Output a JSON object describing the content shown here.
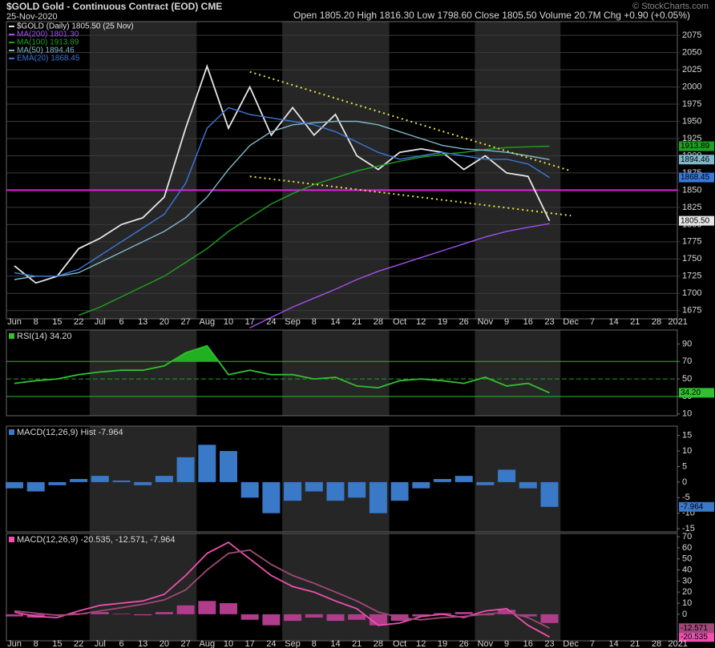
{
  "header": {
    "title": "$GOLD Gold - Continuous Contract (EOD) CME",
    "date": "25-Nov-2020",
    "quote": "Open 1805.20 High 1816.30 Low 1798.60 Close 1805.50 Volume 20.7M Chg +0.90 (+0.05%)",
    "credit": "© StockCharts.com"
  },
  "chart_data": [
    {
      "type": "line",
      "categories": [
        "Jun",
        "8",
        "15",
        "22",
        "Jul",
        "6",
        "13",
        "20",
        "27",
        "Aug",
        "10",
        "17",
        "24",
        "Sep",
        "8",
        "14",
        "21",
        "28",
        "Oct",
        "12",
        "19",
        "26",
        "Nov",
        "9",
        "16",
        "23",
        "Dec",
        "7",
        "14",
        "21",
        "28",
        "2021"
      ],
      "ylim": [
        1663,
        2095
      ],
      "yticks": [
        1675,
        1700,
        1725,
        1750,
        1775,
        1800,
        1825,
        1850,
        1875,
        1900,
        1925,
        1950,
        1975,
        2000,
        2025,
        2050,
        2075
      ],
      "grid": true,
      "hlines": [
        {
          "value": 1850,
          "color": "#e020e0"
        }
      ],
      "trendlines": [
        {
          "from": "17",
          "to": "Dec",
          "values": [
            2022,
            1878
          ]
        },
        {
          "from": "17",
          "to": "Dec",
          "values": [
            1870,
            1813
          ]
        }
      ],
      "trendline_color": "#e8e040",
      "series": [
        {
          "name": "$GOLD (Daily) 1805.50 (25 Nov)",
          "color": "#e6e6e6",
          "last_label": "1805.50",
          "values": [
            1740,
            1715,
            1725,
            1765,
            1780,
            1800,
            1810,
            1840,
            1940,
            2030,
            1940,
            2000,
            1930,
            1970,
            1930,
            1960,
            1900,
            1880,
            1905,
            1910,
            1905,
            1880,
            1900,
            1875,
            1870,
            1805.5,
            null,
            null,
            null,
            null,
            null,
            null
          ]
        },
        {
          "name": "MA(200) 1801.30",
          "color": "#a050f0",
          "values": [
            null,
            null,
            null,
            null,
            null,
            null,
            null,
            null,
            null,
            null,
            null,
            1650,
            1665,
            1680,
            1693,
            1706,
            1720,
            1732,
            1742,
            1752,
            1762,
            1772,
            1782,
            1790,
            1796,
            1801.3,
            null,
            null,
            null,
            null,
            null,
            null
          ]
        },
        {
          "name": "MA(100) 1913.89",
          "color": "#20a020",
          "show_last": true,
          "values": [
            null,
            null,
            null,
            1668,
            1680,
            1695,
            1710,
            1725,
            1745,
            1765,
            1790,
            1810,
            1830,
            1845,
            1858,
            1868,
            1878,
            1885,
            1892,
            1898,
            1902,
            1905,
            1909,
            1912,
            1913,
            1913.89,
            null,
            null,
            null,
            null,
            null,
            null
          ]
        },
        {
          "name": "MA(50) 1894.46",
          "color": "#7fb8c8",
          "show_last": true,
          "values": [
            1720,
            1725,
            1725,
            1730,
            1745,
            1760,
            1775,
            1790,
            1810,
            1840,
            1880,
            1915,
            1935,
            1945,
            1948,
            1950,
            1950,
            1945,
            1935,
            1925,
            1915,
            1910,
            1908,
            1905,
            1900,
            1894.46,
            null,
            null,
            null,
            null,
            null,
            null
          ]
        },
        {
          "name": "EMA(20) 1868.45",
          "color": "#3a78d8",
          "show_last": true,
          "values": [
            1730,
            1725,
            1725,
            1735,
            1755,
            1775,
            1795,
            1815,
            1860,
            1940,
            1970,
            1960,
            1955,
            1950,
            1945,
            1935,
            1920,
            1905,
            1895,
            1900,
            1905,
            1900,
            1895,
            1895,
            1888,
            1868.45,
            null,
            null,
            null,
            null,
            null,
            null
          ]
        }
      ]
    },
    {
      "type": "line",
      "title": "RSI(14) 34.20",
      "ylim": [
        8,
        106
      ],
      "yticks": [
        10,
        30,
        50,
        70,
        90
      ],
      "hlines": [
        {
          "value": 70,
          "color": "#20c020"
        },
        {
          "value": 30,
          "color": "#20c020"
        },
        {
          "value": 50,
          "color": "#20a020",
          "dashed": true
        }
      ],
      "fill_above": 70,
      "fill_color": "#20b020",
      "series": [
        {
          "color": "#30c030",
          "last_label": "34.20",
          "values": [
            45,
            48,
            50,
            55,
            58,
            60,
            60,
            65,
            80,
            88,
            55,
            60,
            55,
            55,
            50,
            52,
            42,
            40,
            48,
            50,
            48,
            45,
            52,
            42,
            45,
            34.2,
            null,
            null,
            null,
            null,
            null,
            null
          ]
        }
      ]
    },
    {
      "type": "bar",
      "title": "MACD(12,26,9) Hist -7.964",
      "ylim": [
        -16,
        18
      ],
      "yticks": [
        -15,
        -10,
        -5,
        0,
        5,
        10,
        15
      ],
      "color": "#3a78c8",
      "show_last": true,
      "values": [
        -2,
        -3,
        -1,
        1,
        2,
        0.5,
        -1,
        2,
        8,
        12,
        10,
        -5,
        -10,
        -6,
        -3,
        -6,
        -5,
        -10,
        -6,
        -2,
        1,
        2,
        -1,
        4,
        -2,
        -7.964,
        null,
        null,
        null,
        null,
        null,
        null
      ]
    },
    {
      "type": "line",
      "title": "MACD(12,26,9) -20.535, -12.571, -7.964",
      "ylim": [
        -24,
        73
      ],
      "yticks": [
        0,
        10,
        20,
        30,
        40,
        50,
        60,
        70
      ],
      "histogram": true,
      "histogram_color": "#b03c8c",
      "categories": [
        "Jun",
        "8",
        "15",
        "22",
        "Jul",
        "6",
        "13",
        "20",
        "27",
        "Aug",
        "10",
        "17",
        "24",
        "Sep",
        "8",
        "14",
        "21",
        "28",
        "Oct",
        "12",
        "19",
        "26",
        "Nov",
        "9",
        "16",
        "23",
        "Dec",
        "7",
        "14",
        "21",
        "28",
        "2021"
      ],
      "series": [
        {
          "color": "#f050b0",
          "show_last": true,
          "values": [
            2,
            -2,
            -3,
            3,
            8,
            10,
            12,
            18,
            35,
            55,
            65,
            50,
            35,
            25,
            20,
            12,
            5,
            -10,
            -8,
            -2,
            0,
            -3,
            3,
            5,
            -10,
            -20.535,
            null,
            null,
            null,
            null,
            null,
            null
          ]
        },
        {
          "color": "#a04878",
          "show_last": true,
          "values": [
            3,
            1,
            -1,
            0,
            3,
            6,
            9,
            13,
            22,
            40,
            55,
            58,
            45,
            35,
            28,
            20,
            12,
            2,
            -3,
            -5,
            -3,
            -2,
            0,
            2,
            -3,
            -12.571,
            null,
            null,
            null,
            null,
            null,
            null
          ]
        }
      ]
    }
  ]
}
